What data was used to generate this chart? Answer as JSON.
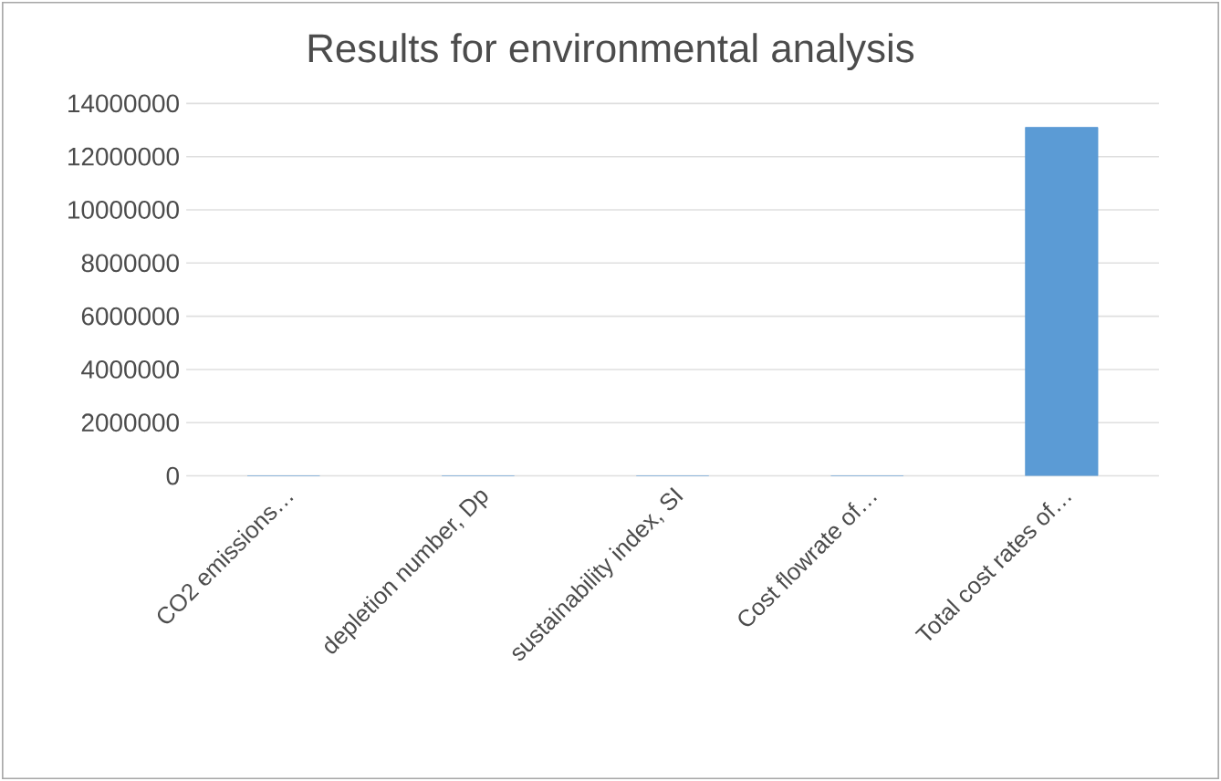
{
  "chart_data": {
    "type": "bar",
    "title": "Results for environmental analysis",
    "categories": [
      "CO2 emissions…",
      "depletion number, Dp",
      "sustainability index, SI",
      "Cost flowrate of…",
      "Total cost rates of…"
    ],
    "values": [
      0,
      0,
      0,
      0,
      13100000
    ],
    "color": "#5b9bd5",
    "ylim": [
      0,
      14000000
    ],
    "yticks": [
      0,
      2000000,
      4000000,
      6000000,
      8000000,
      10000000,
      12000000,
      14000000
    ],
    "grid": "y"
  }
}
